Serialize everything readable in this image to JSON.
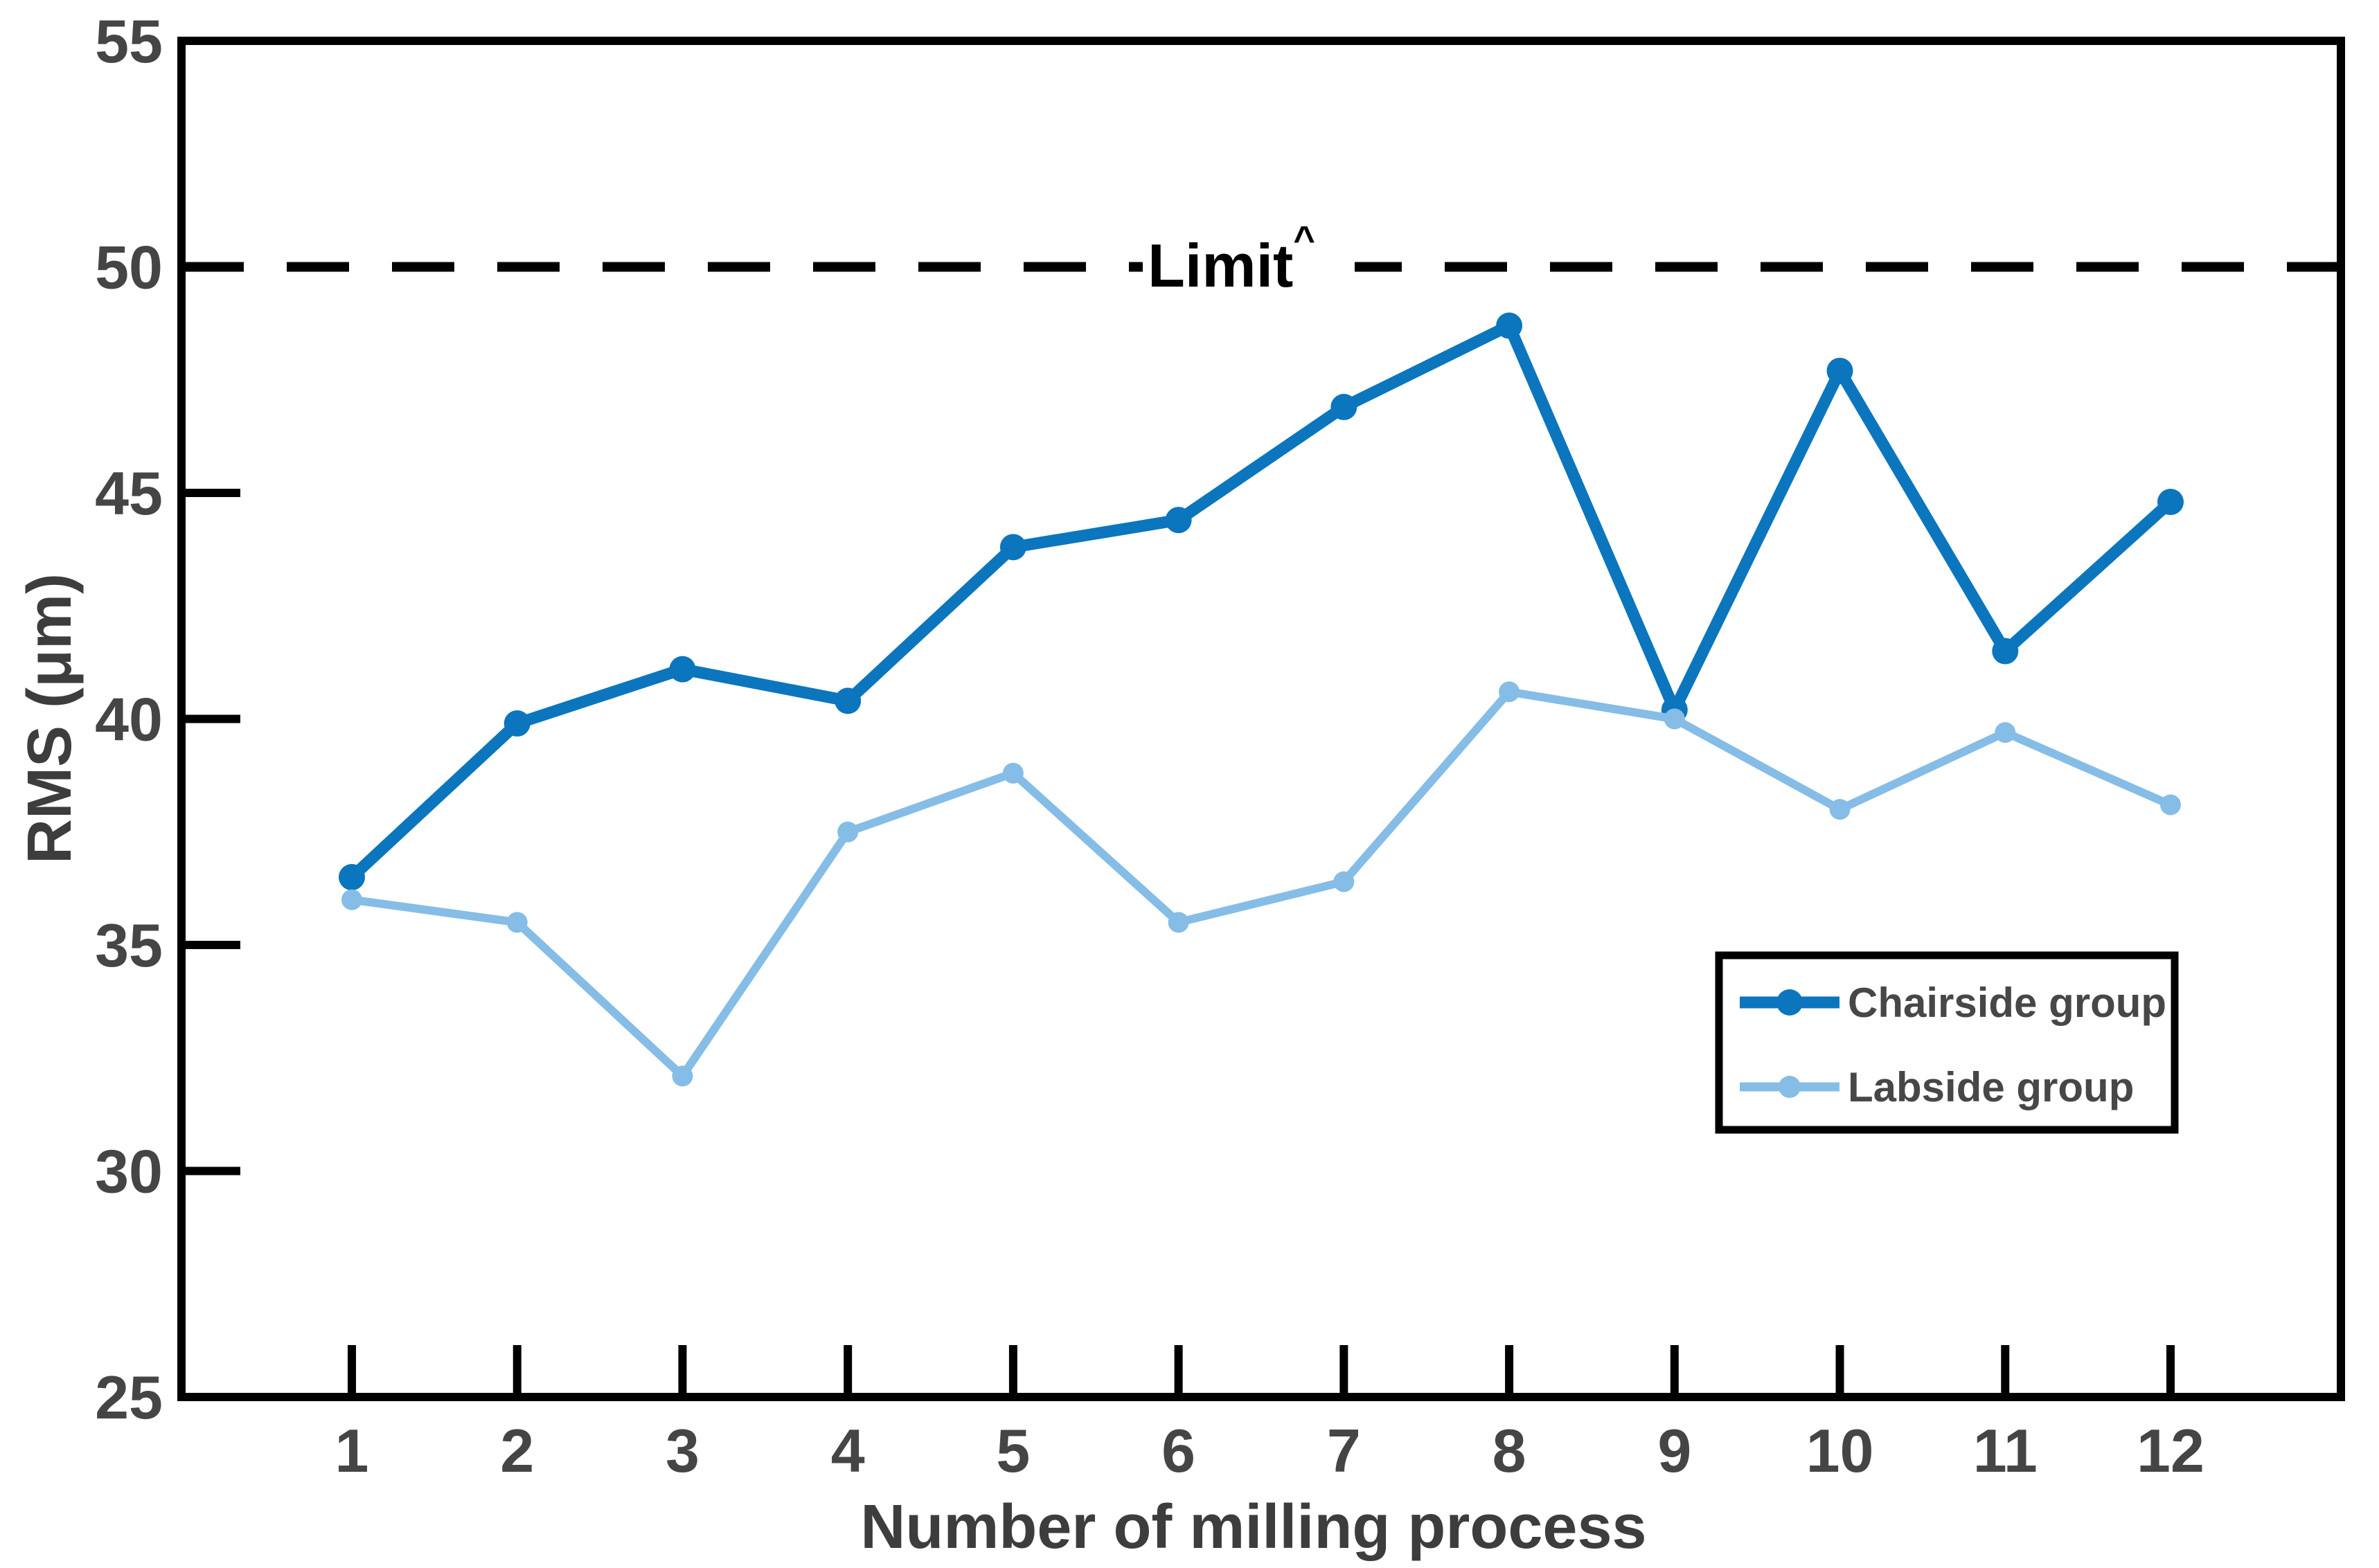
{
  "figure": {
    "background_color": "#ffffff",
    "plot_border_color": "#000000"
  },
  "chart_data": {
    "type": "line",
    "title": "",
    "xlabel": "Number of milling process",
    "ylabel": "RMS (μm)",
    "x": [
      1,
      2,
      3,
      4,
      5,
      6,
      7,
      8,
      9,
      10,
      11,
      12
    ],
    "xtick_labels": [
      "1",
      "2",
      "3",
      "4",
      "5",
      "6",
      "7",
      "8",
      "9",
      "10",
      "11",
      "12"
    ],
    "ylim": [
      25,
      55
    ],
    "yticks": [
      25,
      30,
      35,
      40,
      45,
      50,
      55
    ],
    "grid": false,
    "series": [
      {
        "name": "Chairside group",
        "color": "#0b76bd",
        "marker": "circle",
        "line_width": 17,
        "marker_radius": 19,
        "values": [
          36.5,
          39.9,
          41.1,
          40.4,
          43.8,
          44.4,
          46.9,
          48.7,
          40.2,
          47.7,
          41.5,
          44.8
        ]
      },
      {
        "name": "Labside group",
        "color": "#85bde6",
        "marker": "circle",
        "line_width": 12,
        "marker_radius": 15,
        "values": [
          36.0,
          35.5,
          32.1,
          37.5,
          38.8,
          35.5,
          36.4,
          40.6,
          40.0,
          38.0,
          39.7,
          38.1
        ]
      }
    ],
    "limit_line": {
      "value": 50,
      "label": "Limit",
      "superscript": "^",
      "style": "dashed",
      "color": "#000000"
    },
    "legend": {
      "position": "lower right",
      "entries": [
        "Chairside group",
        "Labside group"
      ]
    },
    "tick_label_color": "#454545",
    "axis_color": "#000000"
  }
}
